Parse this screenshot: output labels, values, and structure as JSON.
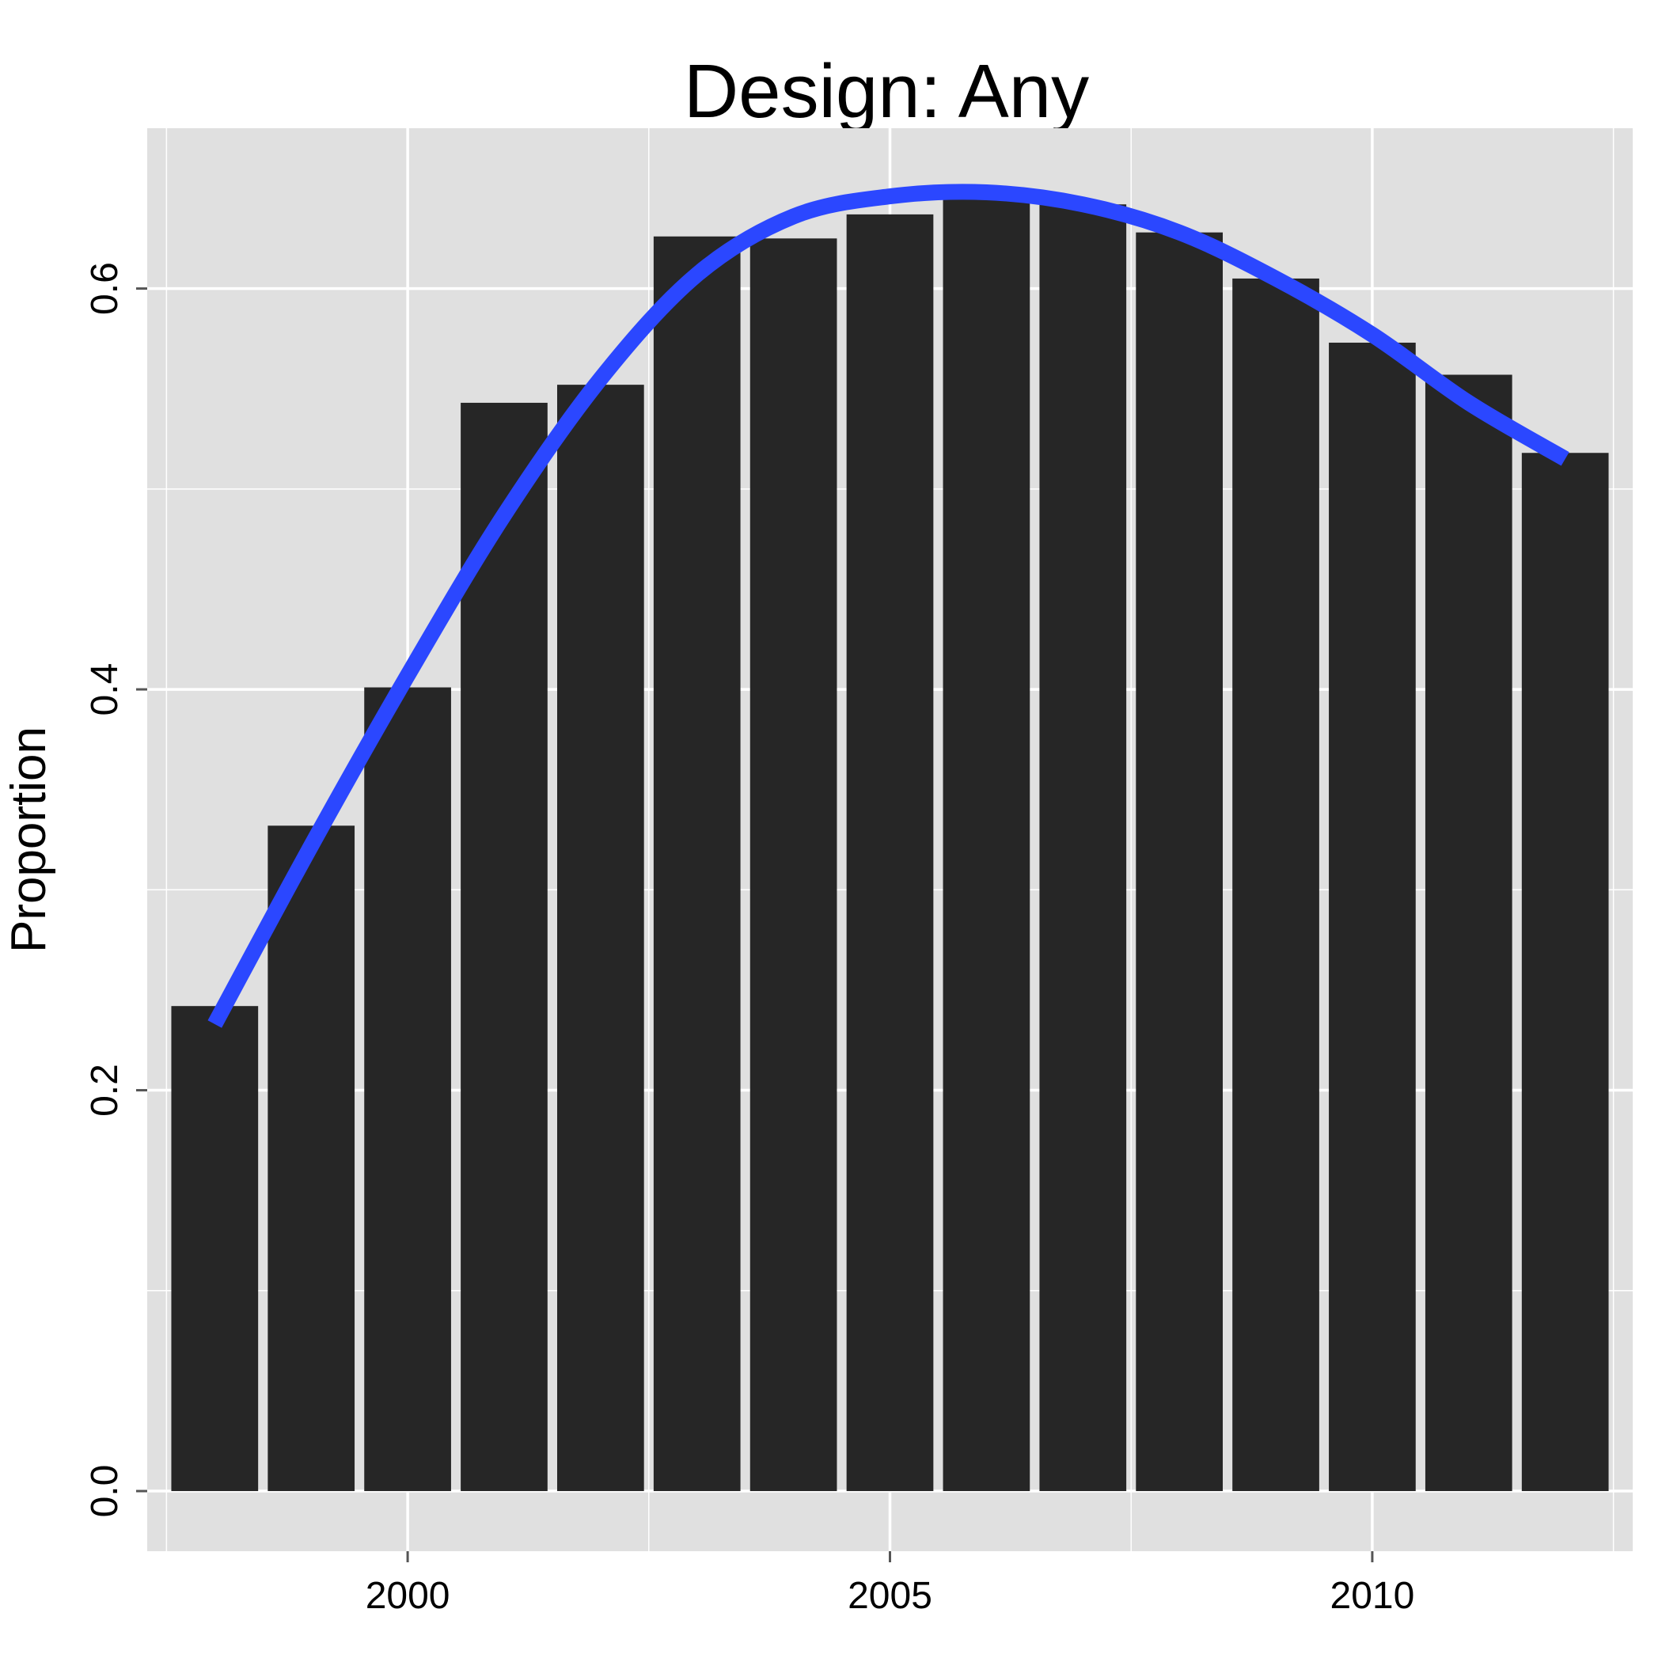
{
  "chart_data": {
    "type": "bar",
    "title": "Design: Any",
    "xlabel": "",
    "ylabel": "Proportion",
    "x": [
      1998,
      1999,
      2000,
      2001,
      2002,
      2003,
      2004,
      2005,
      2006,
      2007,
      2008,
      2009,
      2010,
      2011,
      2012
    ],
    "values": [
      0.242,
      0.332,
      0.401,
      0.543,
      0.552,
      0.626,
      0.625,
      0.637,
      0.65,
      0.642,
      0.628,
      0.605,
      0.573,
      0.557,
      0.518
    ],
    "smooth_line": {
      "x": [
        1998,
        1999,
        2000,
        2001,
        2002,
        2003,
        2004,
        2005,
        2006,
        2007,
        2008,
        2009,
        2010,
        2011,
        2012
      ],
      "y": [
        0.233,
        0.322,
        0.407,
        0.487,
        0.555,
        0.607,
        0.636,
        0.646,
        0.648,
        0.642,
        0.628,
        0.605,
        0.577,
        0.543,
        0.515
      ]
    },
    "xlim": [
      1997.3,
      2012.7
    ],
    "ylim": [
      -0.03,
      0.68
    ],
    "x_ticks": [
      2000,
      2005,
      2010
    ],
    "x_tick_labels": [
      "2000",
      "2005",
      "2010"
    ],
    "y_ticks": [
      0.0,
      0.2,
      0.4,
      0.6
    ],
    "y_tick_labels": [
      "0.0",
      "0.2",
      "0.4",
      "0.6"
    ],
    "grid": true,
    "legend": "none",
    "colors": {
      "bar": "#262626",
      "line": "#2b47ff",
      "panel": "#e0e0e0",
      "grid": "#ffffff",
      "tick": "#555555"
    }
  }
}
